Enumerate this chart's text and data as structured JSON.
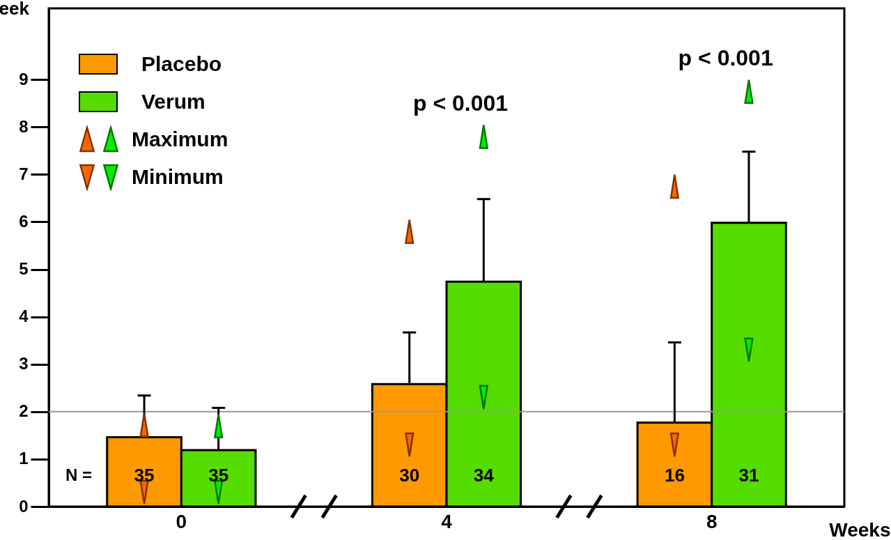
{
  "chart_data": {
    "type": "bar",
    "ylabel": "eek",
    "xlabel": "Weeks",
    "categories": [
      "0",
      "4",
      "8"
    ],
    "series": [
      {
        "name": "Placebo",
        "color": "#ff9900",
        "values": [
          1.46,
          2.58,
          1.77
        ],
        "errors": [
          [
            1.46,
            2.34
          ],
          [
            2.58,
            3.67
          ],
          [
            1.77,
            3.46
          ]
        ]
      },
      {
        "name": "Verum",
        "color": "#55dd00",
        "values": [
          1.19,
          4.74,
          5.98
        ],
        "errors": [
          [
            1.19,
            2.08
          ],
          [
            4.74,
            6.48
          ],
          [
            5.98,
            7.48
          ]
        ]
      },
      {
        "name": "Maximum",
        "type": "scatter",
        "marker": "triangle",
        "colors": [
          "#ff6600",
          "#00ee00",
          "#ff6600",
          "#00ee00",
          "#ff6600",
          "#00ee00"
        ],
        "x": [
          "0",
          "0",
          "4",
          "4",
          "8",
          "8"
        ],
        "values": [
          1.72,
          1.7,
          5.8,
          7.8,
          6.75,
          8.75
        ]
      },
      {
        "name": "Minimum",
        "type": "scatter",
        "marker": "triangle-down",
        "colors": [
          "#ff6600",
          "#00ee00",
          "#ff6600",
          "#00ee00",
          "#ff6600",
          "#00ee00"
        ],
        "x": [
          "0",
          "0",
          "4",
          "4",
          "8",
          "8"
        ],
        "values": [
          0.3,
          0.3,
          1.3,
          2.3,
          1.3,
          3.3
        ]
      }
    ],
    "ylim": [
      0,
      10.5
    ],
    "yticks": [
      0,
      1,
      2,
      3,
      4,
      5,
      6,
      7,
      8,
      9
    ],
    "grid": false,
    "legend": "top left",
    "ref_lines": [
      {
        "axis": "y",
        "value": 2,
        "color": "#999999"
      }
    ],
    "annotations": [
      "N =",
      {
        "text": "35",
        "x": "0",
        "y": 0.65
      },
      {
        "text": "35",
        "x": "0",
        "y": 0.65
      },
      {
        "text": "30",
        "x": "4",
        "y": 0.65
      },
      {
        "text": "34",
        "x": "4",
        "y": 0.65
      },
      {
        "text": "16",
        "x": "8",
        "y": 0.65
      },
      {
        "text": "31",
        "x": "8",
        "y": 0.65
      },
      "p < 0.001",
      "p < 0.001"
    ]
  }
}
